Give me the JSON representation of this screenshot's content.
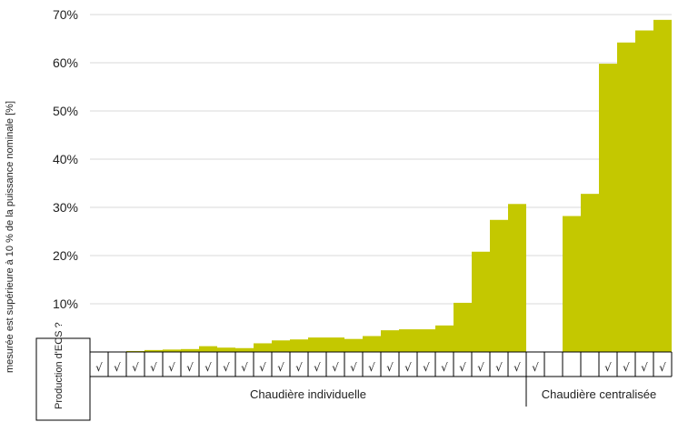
{
  "chart_data": {
    "type": "bar",
    "ylabel": "mesurée est supérieure à 10 % de la puissance nominale [%]",
    "ylim": [
      0,
      70
    ],
    "yticks": [
      "10%",
      "20%",
      "30%",
      "40%",
      "50%",
      "60%",
      "70%"
    ],
    "grid": true,
    "bar_color": "#c4c800",
    "table_header": "Production d'ECS ?",
    "check_symbol": "√",
    "groups": [
      {
        "label": "Chaudière individuelle",
        "start": 0,
        "end": 24
      },
      {
        "label": "Chaudière centralisée",
        "start": 24,
        "end": 32
      }
    ],
    "values": [
      0,
      0,
      0.2,
      0.4,
      0.5,
      0.6,
      1.2,
      0.9,
      0.8,
      1.8,
      2.4,
      2.6,
      3.0,
      3.0,
      2.7,
      3.3,
      4.5,
      4.7,
      4.7,
      5.5,
      10.2,
      20.8,
      27.4,
      30.7,
      0,
      0,
      28.2,
      32.8,
      59.8,
      64.2,
      66.7,
      68.9
    ],
    "ecs": [
      true,
      true,
      true,
      true,
      true,
      true,
      true,
      true,
      true,
      true,
      true,
      true,
      true,
      true,
      true,
      true,
      true,
      true,
      true,
      true,
      true,
      true,
      true,
      true,
      true,
      false,
      false,
      false,
      true,
      true,
      true,
      true
    ]
  }
}
